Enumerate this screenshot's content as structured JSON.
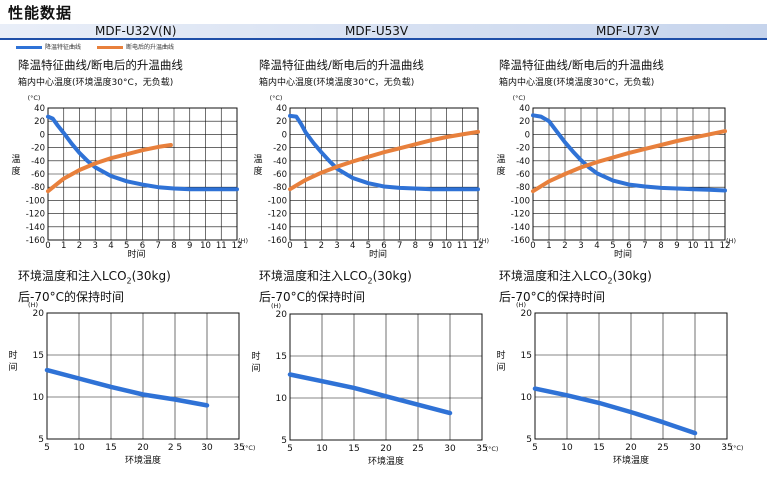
{
  "page_title": "性能数据",
  "models": [
    {
      "name": "MDF-U32V(N)"
    },
    {
      "name": "MDF-U53V"
    },
    {
      "name": "MDF-U73V"
    }
  ],
  "legend": {
    "cooldown_label": "降温特征曲线",
    "warmup_label": "断电后的升温曲线"
  },
  "colors": {
    "cooldown": "#2f72d6",
    "warmup": "#e8803c",
    "co2": "#2f72d6",
    "band_line": "#1f4fa8"
  },
  "top_panel_text": {
    "title": "降温特征曲线/断电后的升温曲线",
    "conditions": [
      "箱内中心温度(环境温度30°C，无负载)",
      "箱内中心温度(环境温度30°C，无负载)",
      "箱内中心温度(环境温度30°C，无负载)"
    ]
  },
  "bottom_panel_text": {
    "title_prefix": "环境温度和注入LCO",
    "title_sub": "2",
    "title_suffix": "(30kg)",
    "title_line2": "后-70°C的保持时间"
  },
  "chart_data": [
    {
      "type": "line",
      "model": "MDF-U32V(N)",
      "xlabel": "时间",
      "xunit": "(H)",
      "ylabel": "温度",
      "yunit": "(°C)",
      "xlim": [
        0,
        12
      ],
      "ylim": [
        -160,
        40
      ],
      "grid": true,
      "x_ticks": [
        0,
        1,
        2,
        3,
        4,
        5,
        6,
        7,
        8,
        9,
        10,
        11,
        12
      ],
      "y_ticks": [
        40,
        20,
        0,
        -20,
        -40,
        -60,
        -80,
        -100,
        -120,
        -140,
        -160
      ],
      "series": [
        {
          "role": "cooldown",
          "x": [
            0,
            0.3,
            0.6,
            1,
            1.5,
            2,
            2.5,
            3,
            4,
            5,
            6,
            7,
            8,
            9,
            10,
            11,
            12
          ],
          "y": [
            27,
            24,
            14,
            2,
            -14,
            -28,
            -40,
            -50,
            -63,
            -71,
            -76,
            -80,
            -82,
            -83,
            -83,
            -83,
            -83
          ]
        },
        {
          "role": "warmup",
          "x": [
            0,
            1,
            2,
            3,
            4,
            5,
            6,
            7,
            7.8
          ],
          "y": [
            -86,
            -67,
            -54,
            -44,
            -36,
            -30,
            -24,
            -19,
            -16
          ]
        }
      ]
    },
    {
      "type": "line",
      "model": "MDF-U53V",
      "xlabel": "时间",
      "xunit": "(H)",
      "ylabel": "温度",
      "yunit": "(°C)",
      "xlim": [
        0,
        12
      ],
      "ylim": [
        -160,
        40
      ],
      "grid": true,
      "x_ticks": [
        0,
        1,
        2,
        3,
        4,
        5,
        6,
        7,
        8,
        9,
        10,
        11,
        12
      ],
      "y_ticks": [
        40,
        20,
        0,
        -20,
        -40,
        -60,
        -80,
        -100,
        -120,
        -140,
        -160
      ],
      "series": [
        {
          "role": "cooldown",
          "x": [
            0,
            0.4,
            0.7,
            1,
            1.5,
            2,
            2.5,
            3,
            4,
            5,
            6,
            7,
            8,
            9,
            10,
            11,
            12
          ],
          "y": [
            28,
            27,
            16,
            3,
            -13,
            -27,
            -40,
            -52,
            -66,
            -74,
            -79,
            -81,
            -82,
            -83,
            -83,
            -83,
            -83
          ]
        },
        {
          "role": "warmup",
          "x": [
            0,
            1,
            2,
            3,
            4,
            5,
            6,
            7,
            8,
            9,
            10,
            11,
            12
          ],
          "y": [
            -83,
            -69,
            -58,
            -49,
            -41,
            -34,
            -27,
            -21,
            -15,
            -9,
            -4,
            0,
            4
          ]
        }
      ]
    },
    {
      "type": "line",
      "model": "MDF-U73V",
      "xlabel": "时间",
      "xunit": "(H)",
      "ylabel": "温度",
      "yunit": "(°C)",
      "xlim": [
        0,
        12
      ],
      "ylim": [
        -160,
        40
      ],
      "grid": true,
      "x_ticks": [
        0,
        1,
        2,
        3,
        4,
        5,
        6,
        7,
        8,
        9,
        10,
        11,
        12
      ],
      "y_ticks": [
        40,
        20,
        0,
        -20,
        -40,
        -60,
        -80,
        -100,
        -120,
        -140,
        -160
      ],
      "series": [
        {
          "role": "cooldown",
          "x": [
            0,
            0.5,
            1,
            1.5,
            2,
            2.5,
            3,
            3.5,
            4,
            5,
            6,
            7,
            8,
            9,
            10,
            11,
            12
          ],
          "y": [
            29,
            27,
            20,
            4,
            -12,
            -26,
            -39,
            -50,
            -59,
            -70,
            -76,
            -79,
            -81,
            -82,
            -83,
            -84,
            -85
          ]
        },
        {
          "role": "warmup",
          "x": [
            0,
            1,
            2,
            3,
            4,
            5,
            6,
            7,
            8,
            9,
            10,
            11,
            12
          ],
          "y": [
            -86,
            -71,
            -60,
            -50,
            -42,
            -35,
            -28,
            -22,
            -16,
            -10,
            -5,
            0,
            5
          ]
        }
      ]
    },
    {
      "type": "line",
      "model": "MDF-U32V(N)",
      "xlabel": "环境温度",
      "xunit": "(°C)",
      "ylabel": "时间",
      "yunit": "(H)",
      "xlim": [
        5,
        35
      ],
      "ylim": [
        5,
        20
      ],
      "grid": true,
      "x_ticks": [
        5,
        10,
        15,
        20,
        25,
        30,
        35
      ],
      "x_tick_labels": [
        "5",
        "10",
        "15",
        "20",
        "2 5",
        "30",
        "35"
      ],
      "y_ticks": [
        5,
        10,
        15,
        20
      ],
      "series": [
        {
          "role": "hold_time",
          "x": [
            5,
            10,
            15,
            20,
            25,
            30
          ],
          "y": [
            13.2,
            12.2,
            11.2,
            10.3,
            9.7,
            9.0
          ]
        }
      ]
    },
    {
      "type": "line",
      "model": "MDF-U53V",
      "xlabel": "环境温度",
      "xunit": "(°C)",
      "ylabel": "时间",
      "yunit": "(H)",
      "xlim": [
        5,
        35
      ],
      "ylim": [
        5,
        20
      ],
      "grid": true,
      "x_ticks": [
        5,
        10,
        15,
        20,
        25,
        30,
        35
      ],
      "x_tick_labels": [
        "5",
        "10",
        "15",
        "20",
        "25",
        "30",
        "35"
      ],
      "y_ticks": [
        5,
        10,
        15,
        20
      ],
      "series": [
        {
          "role": "hold_time",
          "x": [
            5,
            10,
            15,
            20,
            25,
            30
          ],
          "y": [
            12.8,
            12.0,
            11.2,
            10.2,
            9.2,
            8.2
          ]
        }
      ]
    },
    {
      "type": "line",
      "model": "MDF-U73V",
      "xlabel": "环境温度",
      "xunit": "(°C)",
      "ylabel": "时间",
      "yunit": "(H)",
      "xlim": [
        5,
        35
      ],
      "ylim": [
        5,
        20
      ],
      "grid": true,
      "x_ticks": [
        5,
        10,
        15,
        20,
        25,
        30,
        35
      ],
      "x_tick_labels": [
        "5",
        "10",
        "15",
        "20",
        "25",
        "30",
        "35"
      ],
      "y_ticks": [
        5,
        10,
        15,
        20
      ],
      "series": [
        {
          "role": "hold_time",
          "x": [
            5,
            10,
            15,
            20,
            25,
            30
          ],
          "y": [
            11.0,
            10.2,
            9.3,
            8.2,
            7.0,
            5.7
          ]
        }
      ]
    }
  ]
}
